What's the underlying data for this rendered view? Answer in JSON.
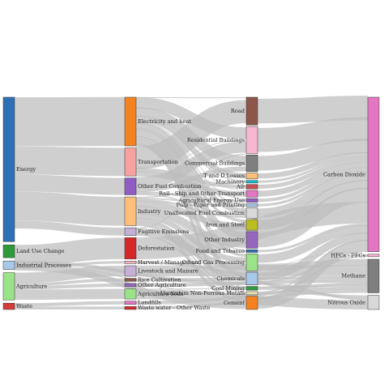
{
  "diagram": {
    "type": "sankey",
    "link_color": "#bdbdbd",
    "columns": [
      [
        {
          "id": "energy",
          "label": "Energy",
          "color": "#2f6fb5",
          "value": 73.2
        },
        {
          "id": "land_use_change",
          "label": "Land Use Change",
          "color": "#2e9a3a",
          "value": 6.5
        },
        {
          "id": "industrial_processes",
          "label": "Industrial Processes",
          "color": "#a8c8ea",
          "value": 4.3
        },
        {
          "id": "agriculture",
          "label": "Agriculture",
          "color": "#9be389",
          "value": 13.8
        },
        {
          "id": "waste",
          "label": "Waste",
          "color": "#d63b3b",
          "value": 3.2
        }
      ],
      [
        {
          "id": "electricity_and_heat",
          "label": "Electricity and heat",
          "color": "#f58220",
          "value": 24.9
        },
        {
          "id": "transportation",
          "label": "Transportation",
          "color": "#f7a1a1",
          "value": 14.3
        },
        {
          "id": "other_fuel_combustion",
          "label": "Other Fuel Combustion",
          "color": "#8f5cc2",
          "value": 8.6
        },
        {
          "id": "industry",
          "label": "Industry",
          "color": "#fcc07a",
          "value": 14.7
        },
        {
          "id": "fugitive_emissions",
          "label": "Fugitive Emissions",
          "color": "#c5b0d5",
          "value": 4.0
        },
        {
          "id": "deforestation",
          "label": "Deforestation",
          "color": "#d62728",
          "value": 10.9
        },
        {
          "id": "harvest_management",
          "label": "Harvest / Management",
          "color": "#f4b6c2",
          "value": 1.3
        },
        {
          "id": "livestock_and_manure",
          "label": "Livestock and Manure",
          "color": "#c7b0d6",
          "value": 5.4
        },
        {
          "id": "rice_cultivation",
          "label": "Rice Cultivation",
          "color": "#8c564b",
          "value": 1.5
        },
        {
          "id": "other_agriculture",
          "label": "Other Agriculture",
          "color": "#9467bd",
          "value": 1.7
        },
        {
          "id": "agriculture_soils",
          "label": "Agriculture Soils",
          "color": "#9be389",
          "value": 5.2
        },
        {
          "id": "landfills",
          "label": "Landfills",
          "color": "#e377c2",
          "value": 1.7
        },
        {
          "id": "waste_water_other_waste",
          "label": "Waste water - Other Waste",
          "color": "#d62728",
          "value": 1.5
        }
      ],
      [
        {
          "id": "road",
          "label": "Road",
          "color": "#8c564b",
          "value": 10.5
        },
        {
          "id": "residential_buildings",
          "label": "Residential Buildings",
          "color": "#f7b6d2",
          "value": 10.2
        },
        {
          "id": "commercial_buildings",
          "label": "Commercial Buildings",
          "color": "#7f7f7f",
          "value": 6.3
        },
        {
          "id": "t_and_d_losses",
          "label": "T and D Losses",
          "color": "#fcc07a",
          "value": 2.2
        },
        {
          "id": "machinery",
          "label": "Machinery",
          "color": "#17becf",
          "value": 1.0
        },
        {
          "id": "air",
          "label": "Air",
          "color": "#c44e52",
          "value": 1.7
        },
        {
          "id": "rail_ship_transport",
          "label": "Rail - Ship and Other Transport",
          "color": "#e377c2",
          "value": 2.5
        },
        {
          "id": "agricultural_energy_use",
          "label": "Agricultural Energy Use",
          "color": "#8f5cc2",
          "value": 1.4
        },
        {
          "id": "pulp_paper_printing",
          "label": "Pulp - Paper and Printing",
          "color": "#a8c8ea",
          "value": 1.1
        },
        {
          "id": "unallocated_fuel_combustion",
          "label": "Unallocated Fuel Combustion",
          "color": "#d9d9d9",
          "value": 3.8
        },
        {
          "id": "iron_and_steel",
          "label": "Iron and Steel",
          "color": "#bcbd22",
          "value": 4.0
        },
        {
          "id": "other_industry",
          "label": "Other Industry",
          "color": "#9467bd",
          "value": 6.3
        },
        {
          "id": "food_and_tobacco",
          "label": "Food and Tobacco",
          "color": "#2f6fb5",
          "value": 1.0
        },
        {
          "id": "oil_and_gas_processing",
          "label": "Oil and Gas Processing",
          "color": "#9be389",
          "value": 6.4
        },
        {
          "id": "chemicals",
          "label": "Chemicals",
          "color": "#a8c8ea",
          "value": 4.8
        },
        {
          "id": "coal_mining",
          "label": "Coal Mining",
          "color": "#2e9a3a",
          "value": 1.4
        },
        {
          "id": "aluminium_non_ferrous_metals",
          "label": "Aluminium Non-Ferrous Metals",
          "color": "#e8e4b2",
          "value": 1.2
        },
        {
          "id": "cement",
          "label": "Cement",
          "color": "#f58220",
          "value": 5.0
        }
      ],
      [
        {
          "id": "carbon_dioxide",
          "label": "Carbon Dioxide",
          "color": "#e377c2",
          "value": 75.6
        },
        {
          "id": "hfcs_pfcs",
          "label": "HFCs - PFCs",
          "color": "#f7b6d2",
          "value": 1.2
        },
        {
          "id": "methane",
          "label": "Methane",
          "color": "#7f7f7f",
          "value": 16.4
        },
        {
          "id": "nitrous_oxide",
          "label": "Nitrous Oxide",
          "color": "#d9d9d9",
          "value": 6.9
        }
      ]
    ],
    "links": [
      [
        "energy",
        "electricity_and_heat",
        24.9
      ],
      [
        "energy",
        "transportation",
        14.3
      ],
      [
        "energy",
        "other_fuel_combustion",
        8.6
      ],
      [
        "energy",
        "industry",
        14.7
      ],
      [
        "energy",
        "fugitive_emissions",
        4.0
      ],
      [
        "land_use_change",
        "harvest_management",
        1.3
      ],
      [
        "land_use_change",
        "deforestation",
        10.9
      ],
      [
        "industrial_processes",
        "cement",
        2.8
      ],
      [
        "industrial_processes",
        "chemicals",
        1.4
      ],
      [
        "industrial_processes",
        "aluminium_non_ferrous_metals",
        0.4
      ],
      [
        "agriculture",
        "agriculture_soils",
        5.2
      ],
      [
        "agriculture",
        "livestock_and_manure",
        5.4
      ],
      [
        "agriculture",
        "rice_cultivation",
        1.5
      ],
      [
        "agriculture",
        "other_agriculture",
        1.7
      ],
      [
        "waste",
        "landfills",
        1.7
      ],
      [
        "waste",
        "waste_water_other_waste",
        1.5
      ],
      [
        "electricity_and_heat",
        "residential_buildings",
        5.0
      ],
      [
        "electricity_and_heat",
        "commercial_buildings",
        4.2
      ],
      [
        "electricity_and_heat",
        "t_and_d_losses",
        2.2
      ],
      [
        "electricity_and_heat",
        "unallocated_fuel_combustion",
        2.2
      ],
      [
        "electricity_and_heat",
        "iron_and_steel",
        1.2
      ],
      [
        "electricity_and_heat",
        "other_industry",
        3.0
      ],
      [
        "electricity_and_heat",
        "chemicals",
        1.8
      ],
      [
        "electricity_and_heat",
        "oil_and_gas_processing",
        1.2
      ],
      [
        "electricity_and_heat",
        "pulp_paper_printing",
        0.5
      ],
      [
        "electricity_and_heat",
        "food_and_tobacco",
        0.5
      ],
      [
        "electricity_and_heat",
        "machinery",
        0.5
      ],
      [
        "electricity_and_heat",
        "aluminium_non_ferrous_metals",
        0.6
      ],
      [
        "electricity_and_heat",
        "agricultural_energy_use",
        0.4
      ],
      [
        "electricity_and_heat",
        "cement",
        0.9
      ],
      [
        "electricity_and_heat",
        "coal_mining",
        0.1
      ],
      [
        "electricity_and_heat",
        "road",
        0.4
      ],
      [
        "electricity_and_heat",
        "rail_ship_transport",
        0.3
      ],
      [
        "transportation",
        "road",
        10.1
      ],
      [
        "transportation",
        "air",
        1.7
      ],
      [
        "transportation",
        "rail_ship_transport",
        2.2
      ],
      [
        "transportation",
        "residential_buildings",
        0.3
      ],
      [
        "other_fuel_combustion",
        "residential_buildings",
        4.9
      ],
      [
        "other_fuel_combustion",
        "commercial_buildings",
        2.1
      ],
      [
        "other_fuel_combustion",
        "agricultural_energy_use",
        1.0
      ],
      [
        "other_fuel_combustion",
        "unallocated_fuel_combustion",
        0.6
      ],
      [
        "industry",
        "iron_and_steel",
        2.8
      ],
      [
        "industry",
        "other_industry",
        3.3
      ],
      [
        "industry",
        "chemicals",
        1.6
      ],
      [
        "industry",
        "cement",
        1.3
      ],
      [
        "industry",
        "pulp_paper_printing",
        0.6
      ],
      [
        "industry",
        "food_and_tobacco",
        0.5
      ],
      [
        "industry",
        "machinery",
        0.5
      ],
      [
        "industry",
        "oil_and_gas_processing",
        2.3
      ],
      [
        "industry",
        "aluminium_non_ferrous_metals",
        0.2
      ],
      [
        "industry",
        "unallocated_fuel_combustion",
        1.0
      ],
      [
        "industry",
        "coal_mining",
        0.6
      ],
      [
        "fugitive_emissions",
        "oil_and_gas_processing",
        2.9
      ],
      [
        "fugitive_emissions",
        "coal_mining",
        0.7
      ],
      [
        "fugitive_emissions",
        "residential_buildings",
        0.4
      ],
      [
        "road",
        "carbon_dioxide",
        10.5
      ],
      [
        "residential_buildings",
        "carbon_dioxide",
        10.2
      ],
      [
        "commercial_buildings",
        "carbon_dioxide",
        6.3
      ],
      [
        "t_and_d_losses",
        "carbon_dioxide",
        2.2
      ],
      [
        "machinery",
        "carbon_dioxide",
        1.0
      ],
      [
        "air",
        "carbon_dioxide",
        1.7
      ],
      [
        "rail_ship_transport",
        "carbon_dioxide",
        2.5
      ],
      [
        "agricultural_energy_use",
        "carbon_dioxide",
        1.4
      ],
      [
        "pulp_paper_printing",
        "carbon_dioxide",
        1.1
      ],
      [
        "unallocated_fuel_combustion",
        "carbon_dioxide",
        3.8
      ],
      [
        "iron_and_steel",
        "carbon_dioxide",
        4.0
      ],
      [
        "other_industry",
        "carbon_dioxide",
        6.3
      ],
      [
        "food_and_tobacco",
        "carbon_dioxide",
        1.0
      ],
      [
        "oil_and_gas_processing",
        "carbon_dioxide",
        3.6
      ],
      [
        "oil_and_gas_processing",
        "methane",
        2.8
      ],
      [
        "chemicals",
        "carbon_dioxide",
        3.3
      ],
      [
        "chemicals",
        "hfcs_pfcs",
        0.6
      ],
      [
        "chemicals",
        "nitrous_oxide",
        0.9
      ],
      [
        "coal_mining",
        "methane",
        1.4
      ],
      [
        "aluminium_non_ferrous_metals",
        "carbon_dioxide",
        0.6
      ],
      [
        "aluminium_non_ferrous_metals",
        "hfcs_pfcs",
        0.6
      ],
      [
        "cement",
        "carbon_dioxide",
        5.0
      ],
      [
        "deforestation",
        "carbon_dioxide",
        10.9
      ],
      [
        "harvest_management",
        "nitrous_oxide",
        1.3
      ],
      [
        "livestock_and_manure",
        "methane",
        5.4
      ],
      [
        "rice_cultivation",
        "methane",
        1.5
      ],
      [
        "other_agriculture",
        "methane",
        1.7
      ],
      [
        "agriculture_soils",
        "nitrous_oxide",
        4.7
      ],
      [
        "agriculture_soils",
        "methane",
        0.5
      ],
      [
        "landfills",
        "methane",
        1.7
      ],
      [
        "waste_water_other_waste",
        "methane",
        1.4
      ],
      [
        "waste_water_other_waste",
        "carbon_dioxide",
        0.1
      ]
    ]
  }
}
